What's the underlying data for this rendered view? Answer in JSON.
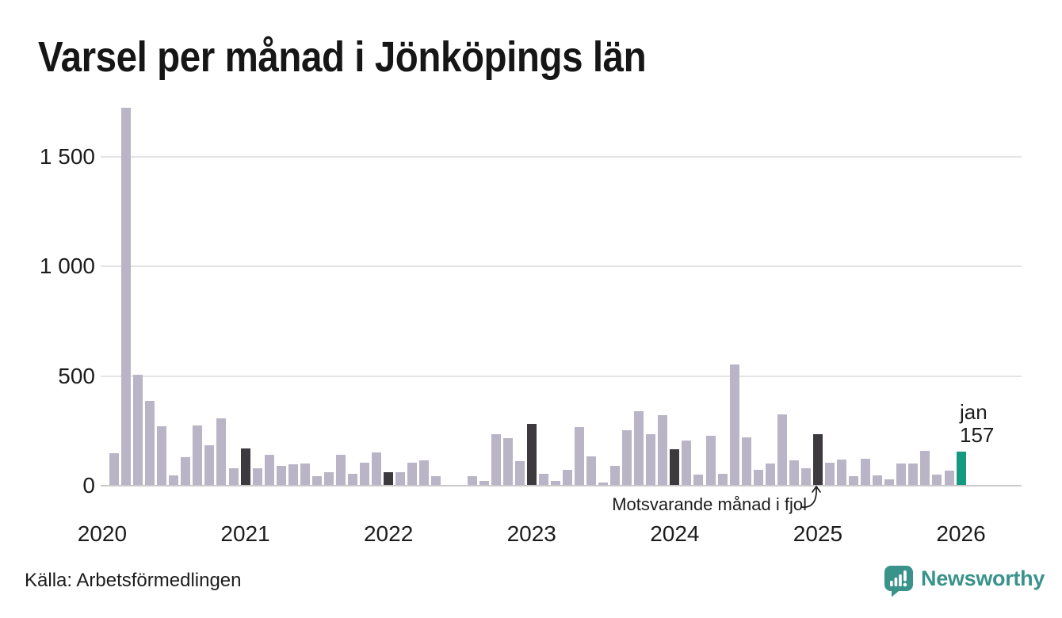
{
  "title": "Varsel per månad i Jönköpings län",
  "source": "Källa: Arbetsförmedlingen",
  "annotation": {
    "text": "Motsvarande månad i fjol"
  },
  "current_point_label": {
    "month": "jan",
    "value": "157"
  },
  "branding": {
    "wordmark": "Newsworthy",
    "icon": "newsworthy-speech-bubble-chart-icon"
  },
  "colors": {
    "background": "#ffffff",
    "bar_base": "#bab5c6",
    "bar_fjol": "#3c3a3e",
    "bar_current": "#149a80",
    "grid": "#e4e4e4",
    "axis_line": "#c9c9c9",
    "text": "#1c1c1c",
    "brand": "#3a938b"
  },
  "chart_data": {
    "type": "bar",
    "title": "Varsel per månad i Jönköpings län",
    "xlabel": "",
    "ylabel": "",
    "unit": "varsel (antal personer)",
    "ylim": [
      0,
      1750
    ],
    "grid": "horizontal",
    "legend_position": "none",
    "yticks": [
      {
        "value": 0,
        "label": "0"
      },
      {
        "value": 500,
        "label": "500"
      },
      {
        "value": 1000,
        "label": "1 000"
      },
      {
        "value": 1500,
        "label": "1 500"
      }
    ],
    "xticks": [
      "2020",
      "2021",
      "2022",
      "2023",
      "2024",
      "2025",
      "2026"
    ],
    "x": [
      "2020-02",
      "2020-03",
      "2020-04",
      "2020-05",
      "2020-06",
      "2020-07",
      "2020-08",
      "2020-09",
      "2020-10",
      "2020-11",
      "2020-12",
      "2021-01",
      "2021-02",
      "2021-03",
      "2021-04",
      "2021-05",
      "2021-06",
      "2021-07",
      "2021-08",
      "2021-09",
      "2021-10",
      "2021-11",
      "2021-12",
      "2022-01",
      "2022-02",
      "2022-03",
      "2022-04",
      "2022-05",
      "2022-06",
      "2022-07",
      "2022-08",
      "2022-09",
      "2022-10",
      "2022-11",
      "2022-12",
      "2023-01",
      "2023-02",
      "2023-03",
      "2023-04",
      "2023-05",
      "2023-06",
      "2023-07",
      "2023-08",
      "2023-09",
      "2023-10",
      "2023-11",
      "2023-12",
      "2024-01",
      "2024-02",
      "2024-03",
      "2024-04",
      "2024-05",
      "2024-06",
      "2024-07",
      "2024-08",
      "2024-09",
      "2024-10",
      "2024-11",
      "2024-12",
      "2025-01",
      "2025-02",
      "2025-03",
      "2025-04",
      "2025-05",
      "2025-06",
      "2025-07",
      "2025-08",
      "2025-09",
      "2025-10",
      "2025-11",
      "2025-12",
      "2026-01"
    ],
    "values": [
      150,
      1724,
      507,
      386,
      272,
      48,
      132,
      276,
      183,
      307,
      80,
      170,
      78,
      140,
      92,
      96,
      102,
      44,
      60,
      140,
      54,
      105,
      152,
      60,
      60,
      105,
      116,
      43,
      0,
      0,
      43,
      23,
      236,
      216,
      113,
      283,
      55,
      20,
      71,
      267,
      134,
      14,
      90,
      254,
      339,
      234,
      321,
      168,
      205,
      52,
      227,
      56,
      554,
      219,
      72,
      100,
      326,
      115,
      78,
      234,
      105,
      120,
      44,
      122,
      48,
      30,
      102,
      100,
      159,
      52,
      68,
      157
    ],
    "fjol_months": [
      "2021-01",
      "2022-01",
      "2023-01",
      "2024-01",
      "2025-01"
    ],
    "current_month": "2026-01"
  }
}
